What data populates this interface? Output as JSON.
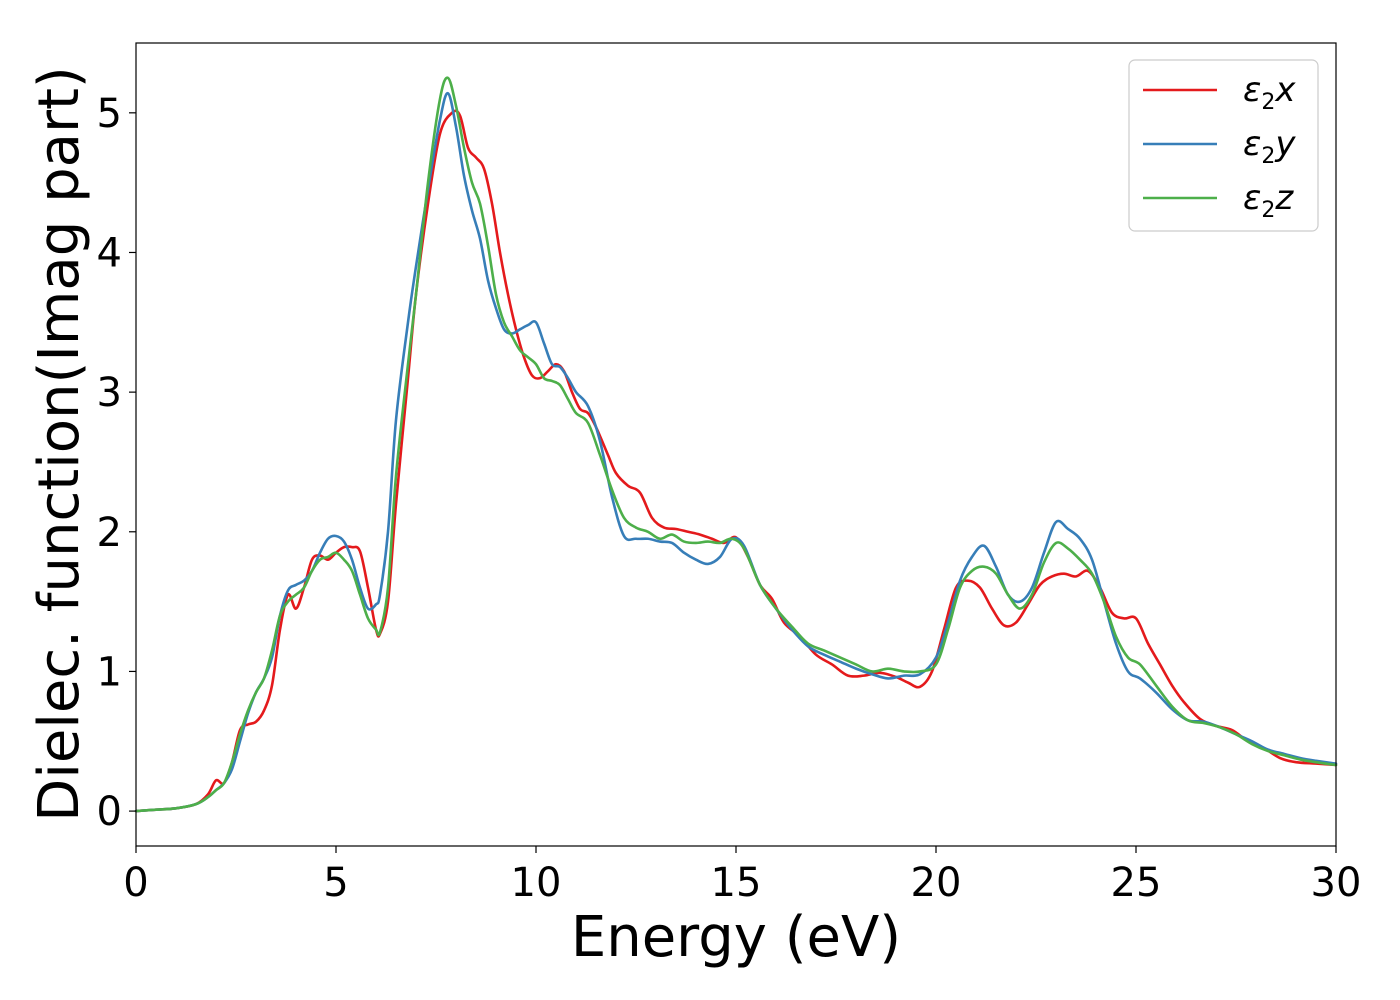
{
  "chart_data": {
    "type": "line",
    "xlabel": "Energy (eV)",
    "ylabel": "Dielec. function(Imag part)",
    "xlim": [
      0,
      30
    ],
    "ylim": [
      -0.25,
      5.5
    ],
    "xticks": [
      0,
      5,
      10,
      15,
      20,
      25,
      30
    ],
    "yticks": [
      0,
      1,
      2,
      3,
      4,
      5
    ],
    "grid": false,
    "legend_position": "top-right",
    "series": [
      {
        "name": "ε2x",
        "name_base": "ε",
        "name_sub": "2",
        "name_var": "x",
        "color": "#e41a1c",
        "x": [
          0,
          0.5,
          1,
          1.5,
          1.8,
          2,
          2.2,
          2.4,
          2.6,
          2.8,
          3,
          3.2,
          3.4,
          3.6,
          3.8,
          4,
          4.2,
          4.4,
          4.6,
          4.8,
          5,
          5.2,
          5.4,
          5.6,
          5.8,
          6,
          6.1,
          6.3,
          6.5,
          6.8,
          7,
          7.3,
          7.6,
          7.9,
          8.1,
          8.3,
          8.5,
          8.7,
          8.9,
          9.1,
          9.3,
          9.5,
          9.7,
          9.9,
          10.1,
          10.3,
          10.5,
          10.7,
          10.9,
          11.1,
          11.3,
          11.5,
          11.8,
          12,
          12.3,
          12.6,
          12.9,
          13.2,
          13.5,
          13.8,
          14.1,
          14.4,
          14.7,
          15,
          15.3,
          15.6,
          15.9,
          16.2,
          16.6,
          17,
          17.4,
          17.8,
          18.2,
          18.6,
          19,
          19.3,
          19.6,
          19.9,
          20.2,
          20.5,
          20.8,
          21.1,
          21.4,
          21.7,
          22,
          22.3,
          22.6,
          22.9,
          23.2,
          23.5,
          23.8,
          24.1,
          24.4,
          24.7,
          25,
          25.3,
          25.6,
          25.9,
          26.2,
          26.6,
          27,
          27.4,
          27.8,
          28.2,
          28.6,
          29,
          29.5,
          30
        ],
        "y": [
          0,
          0.01,
          0.02,
          0.05,
          0.12,
          0.22,
          0.2,
          0.35,
          0.58,
          0.62,
          0.64,
          0.72,
          0.9,
          1.3,
          1.55,
          1.45,
          1.6,
          1.8,
          1.83,
          1.8,
          1.85,
          1.89,
          1.89,
          1.86,
          1.6,
          1.3,
          1.27,
          1.5,
          2.2,
          3.1,
          3.7,
          4.35,
          4.85,
          5.0,
          4.98,
          4.75,
          4.68,
          4.6,
          4.35,
          4.0,
          3.7,
          3.45,
          3.25,
          3.12,
          3.1,
          3.15,
          3.2,
          3.15,
          3.0,
          2.88,
          2.85,
          2.75,
          2.55,
          2.42,
          2.33,
          2.28,
          2.1,
          2.03,
          2.02,
          2.0,
          1.98,
          1.95,
          1.92,
          1.96,
          1.82,
          1.62,
          1.52,
          1.35,
          1.25,
          1.12,
          1.05,
          0.97,
          0.97,
          0.99,
          0.96,
          0.92,
          0.89,
          1.0,
          1.3,
          1.6,
          1.65,
          1.6,
          1.45,
          1.33,
          1.35,
          1.48,
          1.62,
          1.68,
          1.7,
          1.68,
          1.72,
          1.6,
          1.42,
          1.38,
          1.38,
          1.2,
          1.05,
          0.9,
          0.78,
          0.66,
          0.61,
          0.58,
          0.5,
          0.45,
          0.38,
          0.35,
          0.34,
          0.33
        ]
      },
      {
        "name": "ε2y",
        "name_base": "ε",
        "name_sub": "2",
        "name_var": "y",
        "color": "#377eb8",
        "x": [
          0,
          0.5,
          1,
          1.5,
          1.8,
          2,
          2.2,
          2.4,
          2.6,
          2.8,
          3,
          3.2,
          3.4,
          3.6,
          3.8,
          4,
          4.2,
          4.4,
          4.6,
          4.8,
          5,
          5.2,
          5.4,
          5.6,
          5.8,
          6,
          6.1,
          6.3,
          6.5,
          6.8,
          7,
          7.3,
          7.6,
          7.8,
          8,
          8.2,
          8.4,
          8.6,
          8.8,
          9,
          9.2,
          9.4,
          9.6,
          9.8,
          10,
          10.2,
          10.4,
          10.6,
          10.8,
          11,
          11.3,
          11.6,
          11.9,
          12.2,
          12.5,
          12.8,
          13.1,
          13.4,
          13.7,
          14,
          14.3,
          14.6,
          14.9,
          15.2,
          15.6,
          16,
          16.4,
          16.8,
          17.2,
          17.6,
          18,
          18.4,
          18.8,
          19.2,
          19.6,
          20,
          20.3,
          20.6,
          20.9,
          21.2,
          21.5,
          21.8,
          22.1,
          22.4,
          22.7,
          23,
          23.3,
          23.6,
          23.9,
          24.2,
          24.5,
          24.8,
          25.1,
          25.5,
          25.9,
          26.3,
          26.7,
          27.1,
          27.5,
          27.9,
          28.3,
          28.7,
          29.1,
          29.5,
          30
        ],
        "y": [
          0,
          0.01,
          0.02,
          0.05,
          0.1,
          0.15,
          0.2,
          0.3,
          0.5,
          0.7,
          0.85,
          0.95,
          1.1,
          1.4,
          1.58,
          1.62,
          1.65,
          1.72,
          1.85,
          1.95,
          1.97,
          1.93,
          1.8,
          1.6,
          1.45,
          1.48,
          1.55,
          2.0,
          2.8,
          3.5,
          3.9,
          4.45,
          4.95,
          5.14,
          4.9,
          4.55,
          4.3,
          4.1,
          3.8,
          3.6,
          3.45,
          3.42,
          3.45,
          3.48,
          3.5,
          3.35,
          3.2,
          3.18,
          3.1,
          3.0,
          2.9,
          2.65,
          2.25,
          1.97,
          1.95,
          1.95,
          1.93,
          1.92,
          1.85,
          1.8,
          1.77,
          1.82,
          1.95,
          1.9,
          1.62,
          1.45,
          1.3,
          1.18,
          1.12,
          1.07,
          1.02,
          0.98,
          0.95,
          0.97,
          0.98,
          1.1,
          1.35,
          1.65,
          1.82,
          1.9,
          1.75,
          1.55,
          1.5,
          1.6,
          1.85,
          2.07,
          2.02,
          1.95,
          1.8,
          1.5,
          1.2,
          1.0,
          0.95,
          0.85,
          0.73,
          0.65,
          0.64,
          0.6,
          0.55,
          0.5,
          0.44,
          0.41,
          0.38,
          0.36,
          0.34
        ]
      },
      {
        "name": "ε2z",
        "name_base": "ε",
        "name_sub": "2",
        "name_var": "z",
        "color": "#4daf4a",
        "x": [
          0,
          0.5,
          1,
          1.5,
          1.8,
          2,
          2.2,
          2.4,
          2.6,
          2.8,
          3,
          3.2,
          3.4,
          3.6,
          3.8,
          4,
          4.2,
          4.4,
          4.6,
          4.8,
          5,
          5.2,
          5.4,
          5.6,
          5.8,
          6,
          6.1,
          6.3,
          6.5,
          6.8,
          7,
          7.3,
          7.6,
          7.8,
          8,
          8.2,
          8.4,
          8.6,
          8.8,
          9,
          9.2,
          9.4,
          9.6,
          9.8,
          10,
          10.2,
          10.4,
          10.6,
          10.8,
          11,
          11.3,
          11.6,
          11.9,
          12.2,
          12.5,
          12.8,
          13.1,
          13.4,
          13.7,
          14,
          14.3,
          14.6,
          14.9,
          15.2,
          15.6,
          16,
          16.4,
          16.8,
          17.2,
          17.6,
          18,
          18.4,
          18.8,
          19.2,
          19.6,
          20,
          20.3,
          20.6,
          20.9,
          21.2,
          21.5,
          21.8,
          22.1,
          22.4,
          22.7,
          23,
          23.3,
          23.6,
          23.9,
          24.2,
          24.5,
          24.8,
          25.1,
          25.5,
          25.9,
          26.3,
          26.7,
          27.1,
          27.5,
          27.9,
          28.3,
          28.7,
          29.1,
          29.5,
          30
        ],
        "y": [
          0,
          0.01,
          0.02,
          0.05,
          0.1,
          0.15,
          0.2,
          0.35,
          0.55,
          0.72,
          0.85,
          0.95,
          1.15,
          1.4,
          1.5,
          1.55,
          1.6,
          1.72,
          1.8,
          1.82,
          1.85,
          1.8,
          1.72,
          1.55,
          1.38,
          1.3,
          1.28,
          1.6,
          2.4,
          3.2,
          3.7,
          4.5,
          5.1,
          5.25,
          5.05,
          4.75,
          4.5,
          4.35,
          4.05,
          3.7,
          3.5,
          3.4,
          3.3,
          3.25,
          3.2,
          3.1,
          3.08,
          3.05,
          2.95,
          2.85,
          2.78,
          2.55,
          2.3,
          2.1,
          2.03,
          2.0,
          1.95,
          1.98,
          1.93,
          1.92,
          1.93,
          1.92,
          1.95,
          1.88,
          1.62,
          1.45,
          1.32,
          1.2,
          1.15,
          1.1,
          1.05,
          1.0,
          1.02,
          1.0,
          1.0,
          1.05,
          1.3,
          1.6,
          1.72,
          1.75,
          1.7,
          1.55,
          1.45,
          1.55,
          1.78,
          1.92,
          1.88,
          1.8,
          1.7,
          1.5,
          1.25,
          1.1,
          1.05,
          0.9,
          0.75,
          0.65,
          0.63,
          0.6,
          0.55,
          0.48,
          0.43,
          0.4,
          0.37,
          0.35,
          0.33
        ]
      }
    ]
  }
}
